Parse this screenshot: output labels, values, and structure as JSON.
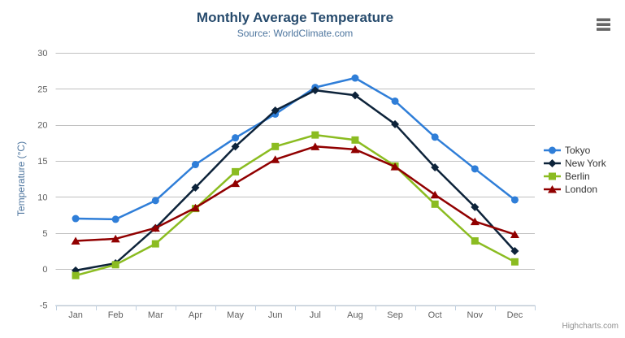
{
  "chart_data": {
    "type": "line",
    "title": "Monthly Average Temperature",
    "subtitle": "Source: WorldClimate.com",
    "categories": [
      "Jan",
      "Feb",
      "Mar",
      "Apr",
      "May",
      "Jun",
      "Jul",
      "Aug",
      "Sep",
      "Oct",
      "Nov",
      "Dec"
    ],
    "series": [
      {
        "name": "Tokyo",
        "color": "#2f7ed8",
        "marker": "circle",
        "values": [
          7.0,
          6.9,
          9.5,
          14.5,
          18.2,
          21.5,
          25.2,
          26.5,
          23.3,
          18.3,
          13.9,
          9.6
        ]
      },
      {
        "name": "New York",
        "color": "#0d233a",
        "marker": "diamond",
        "values": [
          -0.2,
          0.8,
          5.7,
          11.3,
          17.0,
          22.0,
          24.8,
          24.1,
          20.1,
          14.1,
          8.6,
          2.5
        ]
      },
      {
        "name": "Berlin",
        "color": "#8bbc21",
        "marker": "square",
        "values": [
          -0.9,
          0.6,
          3.5,
          8.4,
          13.5,
          17.0,
          18.6,
          17.9,
          14.3,
          9.0,
          3.9,
          1.0
        ]
      },
      {
        "name": "London",
        "color": "#910000",
        "marker": "triangle",
        "values": [
          3.9,
          4.2,
          5.7,
          8.5,
          11.9,
          15.2,
          17.0,
          16.6,
          14.2,
          10.3,
          6.6,
          4.8
        ]
      }
    ],
    "xlabel": "",
    "ylabel": "Temperature (°C)",
    "ylim": [
      -5,
      30
    ],
    "y_ticks": [
      -5,
      0,
      5,
      10,
      15,
      20,
      25,
      30
    ],
    "grid": true,
    "legend_position": "right"
  },
  "credit": {
    "label": "Highcharts.com"
  },
  "context_menu": {
    "icon": "hamburger"
  },
  "colors": {
    "grid_line": "#c0c0c0",
    "axis_line": "#c0d0e0",
    "tick_mark": "#c0d0e0",
    "title_text": "#274b6d",
    "subtitle_text": "#4d759e",
    "axis_label_text": "#606060",
    "legend_text": "#333333",
    "credit_text": "#909090",
    "menu_icon": "#666666"
  }
}
